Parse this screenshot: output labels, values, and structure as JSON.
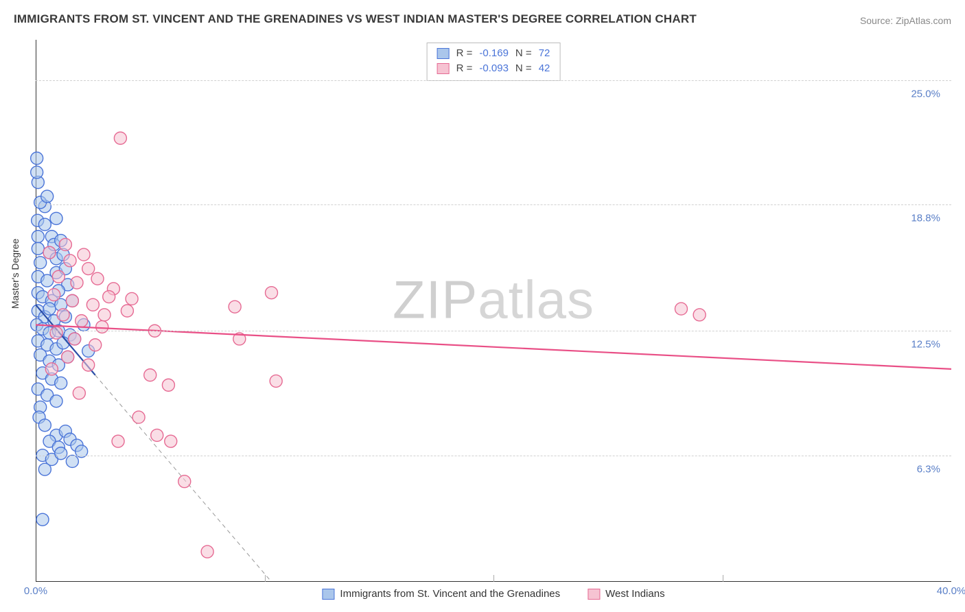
{
  "title": "IMMIGRANTS FROM ST. VINCENT AND THE GRENADINES VS WEST INDIAN MASTER'S DEGREE CORRELATION CHART",
  "source": "Source: ZipAtlas.com",
  "y_axis_label": "Master's Degree",
  "watermark_a": "ZIP",
  "watermark_b": "atlas",
  "chart": {
    "type": "scatter",
    "xlim": [
      0,
      40
    ],
    "ylim": [
      0,
      27
    ],
    "x_ticks": [
      0,
      40
    ],
    "x_tick_labels": [
      "0.0%",
      "40.0%"
    ],
    "x_minor_ticks": [
      10,
      20,
      30
    ],
    "y_ticks": [
      6.3,
      12.5,
      18.8,
      25.0
    ],
    "y_tick_labels": [
      "6.3%",
      "12.5%",
      "18.8%",
      "25.0%"
    ],
    "grid_color": "#d0d0d0",
    "background_color": "#ffffff",
    "marker_radius": 9,
    "marker_stroke_width": 1.4,
    "series": [
      {
        "key": "svg",
        "label": "Immigrants from St. Vincent and the Grenadines",
        "fill": "#aac6eb",
        "stroke": "#4a74d8",
        "fill_opacity": 0.55,
        "R": "-0.169",
        "N": "72",
        "trend": {
          "x1": 0,
          "y1": 13.8,
          "x2": 2.6,
          "y2": 10.3,
          "stroke": "#2a4ea8",
          "width": 2.2
        },
        "trend_ext": {
          "x1": 2.6,
          "y1": 10.3,
          "x2": 10.3,
          "y2": 0,
          "stroke": "#999999",
          "width": 1,
          "dash": "6,5"
        },
        "points": [
          [
            0.1,
            19.9
          ],
          [
            0.05,
            21.1
          ],
          [
            0.05,
            20.4
          ],
          [
            0.4,
            18.7
          ],
          [
            0.08,
            18.0
          ],
          [
            0.1,
            17.2
          ],
          [
            0.7,
            17.2
          ],
          [
            0.6,
            16.4
          ],
          [
            0.1,
            16.6
          ],
          [
            0.2,
            15.9
          ],
          [
            0.9,
            16.1
          ],
          [
            1.2,
            16.3
          ],
          [
            0.1,
            15.2
          ],
          [
            0.5,
            15.0
          ],
          [
            0.9,
            15.4
          ],
          [
            1.4,
            14.8
          ],
          [
            0.1,
            14.4
          ],
          [
            0.3,
            14.2
          ],
          [
            0.7,
            14.0
          ],
          [
            1.1,
            13.8
          ],
          [
            0.1,
            13.5
          ],
          [
            0.4,
            13.2
          ],
          [
            0.8,
            13.0
          ],
          [
            1.3,
            13.2
          ],
          [
            0.05,
            12.8
          ],
          [
            0.3,
            12.6
          ],
          [
            0.6,
            12.4
          ],
          [
            1.0,
            12.5
          ],
          [
            1.5,
            12.3
          ],
          [
            0.1,
            12.0
          ],
          [
            0.5,
            11.8
          ],
          [
            0.9,
            11.6
          ],
          [
            1.2,
            11.9
          ],
          [
            1.7,
            12.1
          ],
          [
            0.2,
            11.3
          ],
          [
            0.6,
            11.0
          ],
          [
            1.0,
            10.8
          ],
          [
            1.4,
            11.2
          ],
          [
            0.3,
            10.4
          ],
          [
            0.7,
            10.1
          ],
          [
            1.1,
            9.9
          ],
          [
            0.1,
            9.6
          ],
          [
            0.5,
            9.3
          ],
          [
            0.9,
            9.0
          ],
          [
            0.2,
            8.7
          ],
          [
            0.15,
            8.2
          ],
          [
            0.4,
            7.8
          ],
          [
            0.9,
            7.3
          ],
          [
            1.3,
            7.5
          ],
          [
            0.6,
            7.0
          ],
          [
            1.0,
            6.7
          ],
          [
            1.5,
            7.1
          ],
          [
            1.8,
            6.8
          ],
          [
            0.3,
            6.3
          ],
          [
            0.7,
            6.1
          ],
          [
            1.1,
            6.4
          ],
          [
            1.6,
            6.0
          ],
          [
            2.0,
            6.5
          ],
          [
            0.4,
            5.6
          ],
          [
            0.3,
            3.1
          ],
          [
            0.6,
            13.6
          ],
          [
            1.0,
            14.5
          ],
          [
            1.3,
            15.6
          ],
          [
            0.8,
            16.8
          ],
          [
            0.4,
            17.8
          ],
          [
            1.1,
            17.0
          ],
          [
            0.2,
            18.9
          ],
          [
            0.5,
            19.2
          ],
          [
            0.9,
            18.1
          ],
          [
            1.6,
            14.0
          ],
          [
            2.1,
            12.8
          ],
          [
            2.3,
            11.5
          ]
        ]
      },
      {
        "key": "wi",
        "label": "West Indians",
        "fill": "#f6c3d2",
        "stroke": "#e66a93",
        "fill_opacity": 0.55,
        "R": "-0.093",
        "N": "42",
        "trend": {
          "x1": 0,
          "y1": 12.8,
          "x2": 40,
          "y2": 10.6,
          "stroke": "#e94f86",
          "width": 2.2
        },
        "points": [
          [
            3.7,
            22.1
          ],
          [
            0.6,
            16.4
          ],
          [
            1.5,
            16.0
          ],
          [
            2.3,
            15.6
          ],
          [
            1.0,
            15.2
          ],
          [
            1.8,
            14.9
          ],
          [
            2.7,
            15.1
          ],
          [
            3.4,
            14.6
          ],
          [
            0.8,
            14.3
          ],
          [
            1.6,
            14.0
          ],
          [
            2.5,
            13.8
          ],
          [
            3.2,
            14.2
          ],
          [
            4.2,
            14.1
          ],
          [
            10.3,
            14.4
          ],
          [
            1.2,
            13.3
          ],
          [
            2.0,
            13.0
          ],
          [
            2.9,
            12.7
          ],
          [
            0.9,
            12.4
          ],
          [
            1.7,
            12.1
          ],
          [
            2.6,
            11.8
          ],
          [
            5.2,
            12.5
          ],
          [
            8.7,
            13.7
          ],
          [
            8.9,
            12.1
          ],
          [
            1.4,
            11.2
          ],
          [
            2.3,
            10.8
          ],
          [
            5.0,
            10.3
          ],
          [
            5.8,
            9.8
          ],
          [
            10.5,
            10.0
          ],
          [
            1.9,
            9.4
          ],
          [
            4.5,
            8.2
          ],
          [
            3.6,
            7.0
          ],
          [
            5.3,
            7.3
          ],
          [
            5.9,
            7.0
          ],
          [
            6.5,
            5.0
          ],
          [
            7.5,
            1.5
          ],
          [
            0.7,
            10.6
          ],
          [
            1.3,
            16.8
          ],
          [
            2.1,
            16.3
          ],
          [
            28.2,
            13.6
          ],
          [
            29.0,
            13.3
          ],
          [
            3.0,
            13.3
          ],
          [
            4.0,
            13.5
          ]
        ]
      }
    ]
  },
  "stats_labels": {
    "R": "R  =",
    "N": "N  ="
  },
  "bottom_legend": [
    {
      "label": "Immigrants from St. Vincent and the Grenadines",
      "fill": "#aac6eb",
      "stroke": "#4a74d8"
    },
    {
      "label": "West Indians",
      "fill": "#f6c3d2",
      "stroke": "#e66a93"
    }
  ]
}
